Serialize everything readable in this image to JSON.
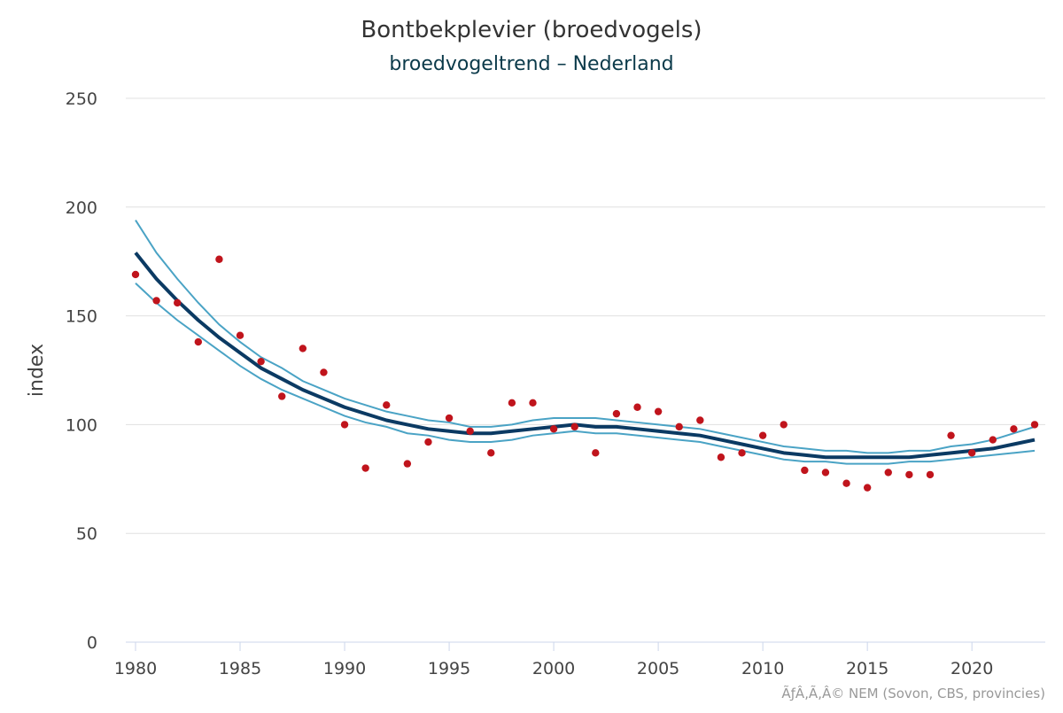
{
  "chart_data": {
    "type": "line",
    "title": "Bontbekplevier (broedvogels)",
    "subtitle": "broedvogeltrend – Nederland",
    "ylabel": "index",
    "xlabel": "",
    "xlim": [
      1980,
      2023
    ],
    "ylim": [
      0,
      250
    ],
    "x_ticks": [
      1980,
      1985,
      1990,
      1995,
      2000,
      2005,
      2010,
      2015,
      2020
    ],
    "y_ticks": [
      0,
      50,
      100,
      150,
      200,
      250
    ],
    "grid": true,
    "credit": "ÃƒÂ‚Ã‚Â© NEM (Sovon, CBS, provincies)",
    "colors": {
      "trend": "#0b3a63",
      "bounds": "#4aa3c5",
      "points": "#c0141c",
      "grid": "#e0e0e0",
      "axis": "#ccd6eb"
    },
    "x": [
      1980,
      1981,
      1982,
      1983,
      1984,
      1985,
      1986,
      1987,
      1988,
      1989,
      1990,
      1991,
      1992,
      1993,
      1994,
      1995,
      1996,
      1997,
      1998,
      1999,
      2000,
      2001,
      2002,
      2003,
      2004,
      2005,
      2006,
      2007,
      2008,
      2009,
      2010,
      2011,
      2012,
      2013,
      2014,
      2015,
      2016,
      2017,
      2018,
      2019,
      2020,
      2021,
      2022,
      2023
    ],
    "trend": [
      179,
      167,
      157,
      148,
      140,
      133,
      126,
      121,
      116,
      112,
      108,
      105,
      102,
      100,
      98,
      97,
      96,
      96,
      97,
      98,
      99,
      100,
      99,
      99,
      98,
      97,
      96,
      95,
      93,
      91,
      89,
      87,
      86,
      85,
      85,
      85,
      85,
      85,
      86,
      87,
      88,
      89,
      91,
      93
    ],
    "upper": [
      194,
      179,
      167,
      156,
      146,
      138,
      131,
      126,
      120,
      116,
      112,
      109,
      106,
      104,
      102,
      101,
      99,
      99,
      100,
      102,
      103,
      103,
      103,
      102,
      101,
      100,
      99,
      98,
      96,
      94,
      92,
      90,
      89,
      88,
      88,
      87,
      87,
      88,
      88,
      90,
      91,
      93,
      96,
      99
    ],
    "lower": [
      165,
      156,
      148,
      141,
      134,
      127,
      121,
      116,
      112,
      108,
      104,
      101,
      99,
      96,
      95,
      93,
      92,
      92,
      93,
      95,
      96,
      97,
      96,
      96,
      95,
      94,
      93,
      92,
      90,
      88,
      86,
      84,
      83,
      83,
      82,
      82,
      82,
      83,
      83,
      84,
      85,
      86,
      87,
      88
    ],
    "observed": [
      169,
      157,
      156,
      138,
      176,
      141,
      129,
      113,
      135,
      124,
      100,
      80,
      109,
      82,
      92,
      103,
      97,
      87,
      110,
      110,
      98,
      99,
      87,
      105,
      108,
      106,
      99,
      102,
      85,
      87,
      95,
      100,
      79,
      78,
      73,
      71,
      78,
      77,
      77,
      95,
      87,
      93,
      98,
      100
    ]
  }
}
